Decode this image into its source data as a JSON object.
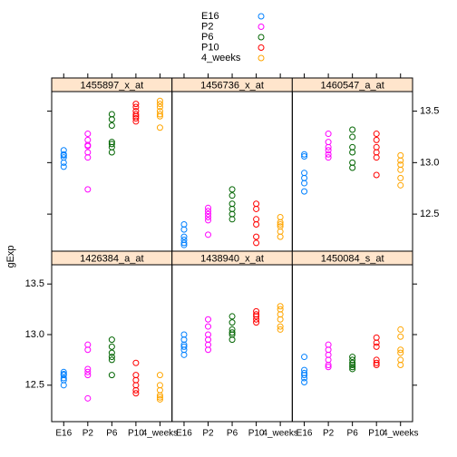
{
  "chart_data": {
    "type": "strip",
    "ylabel": "gExp",
    "categories": [
      "E16",
      "P2",
      "P6",
      "P10",
      "4_weeks"
    ],
    "series": [
      {
        "name": "E16",
        "color": "#0080ff"
      },
      {
        "name": "P2",
        "color": "#ff00ff"
      },
      {
        "name": "P6",
        "color": "#006400"
      },
      {
        "name": "P10",
        "color": "#ff0000"
      },
      {
        "name": "4_weeks",
        "color": "#ffa500"
      }
    ],
    "ylim": [
      12.14,
      13.69
    ],
    "yticks": [
      12.5,
      {
        "value": 13,
        "label": "13.0"
      },
      13.5
    ],
    "panels": [
      {
        "title": "1455897_x_at",
        "values": [
          [
            13.12,
            13.08,
            13.07,
            13.05,
            13.0,
            12.96
          ],
          [
            13.28,
            13.22,
            13.17,
            13.16,
            13.1,
            13.05,
            12.74
          ],
          [
            13.47,
            13.42,
            13.36,
            13.2,
            13.18,
            13.15,
            13.1
          ],
          [
            13.57,
            13.54,
            13.5,
            13.47,
            13.45,
            13.43,
            13.4
          ],
          [
            13.6,
            13.57,
            13.54,
            13.5,
            13.47,
            13.45,
            13.34
          ]
        ]
      },
      {
        "title": "1456736_x_at",
        "values": [
          [
            12.4,
            12.35,
            12.28,
            12.25,
            12.22,
            12.2
          ],
          [
            12.56,
            12.53,
            12.5,
            12.47,
            12.44,
            12.3
          ],
          [
            12.74,
            12.68,
            12.6,
            12.55,
            12.5,
            12.45
          ],
          [
            12.6,
            12.55,
            12.45,
            12.4,
            12.28,
            12.22
          ],
          [
            12.47,
            12.42,
            12.4,
            12.38,
            12.33,
            12.28
          ]
        ]
      },
      {
        "title": "1460547_a_at",
        "values": [
          [
            13.08,
            13.06,
            12.9,
            12.85,
            12.8,
            12.72
          ],
          [
            13.28,
            13.2,
            13.15,
            13.12,
            13.08,
            13.05
          ],
          [
            13.32,
            13.25,
            13.15,
            13.1,
            13.0,
            12.95
          ],
          [
            13.28,
            13.22,
            13.15,
            13.1,
            13.05,
            12.88
          ],
          [
            13.07,
            13.02,
            12.98,
            12.93,
            12.85,
            12.78
          ]
        ]
      },
      {
        "title": "1426384_a_at",
        "values": [
          [
            12.63,
            12.61,
            12.6,
            12.57,
            12.55,
            12.5
          ],
          [
            12.9,
            12.85,
            12.66,
            12.63,
            12.6,
            12.37
          ],
          [
            12.95,
            12.88,
            12.82,
            12.78,
            12.75,
            12.6
          ],
          [
            12.72,
            12.6,
            12.55,
            12.5,
            12.45,
            12.42
          ],
          [
            12.6,
            12.5,
            12.45,
            12.4,
            12.38,
            12.36
          ]
        ]
      },
      {
        "title": "1438940_x_at",
        "values": [
          [
            13.0,
            12.95,
            12.9,
            12.88,
            12.85,
            12.8
          ],
          [
            13.15,
            13.08,
            13.0,
            12.95,
            12.9,
            12.85
          ],
          [
            13.18,
            13.12,
            13.05,
            13.02,
            13.0,
            12.95
          ],
          [
            13.23,
            13.2,
            13.18,
            13.15,
            13.12
          ],
          [
            13.28,
            13.25,
            13.2,
            13.15,
            13.08,
            13.05
          ]
        ]
      },
      {
        "title": "1450084_s_at",
        "values": [
          [
            12.78,
            12.65,
            12.62,
            12.6,
            12.57,
            12.53
          ],
          [
            12.9,
            12.85,
            12.8,
            12.75,
            12.7,
            12.68
          ],
          [
            12.78,
            12.75,
            12.72,
            12.7,
            12.68,
            12.66
          ],
          [
            12.97,
            12.92,
            12.88,
            12.75,
            12.72,
            12.7
          ],
          [
            13.05,
            12.98,
            12.85,
            12.82,
            12.75,
            12.7
          ]
        ]
      }
    ]
  }
}
